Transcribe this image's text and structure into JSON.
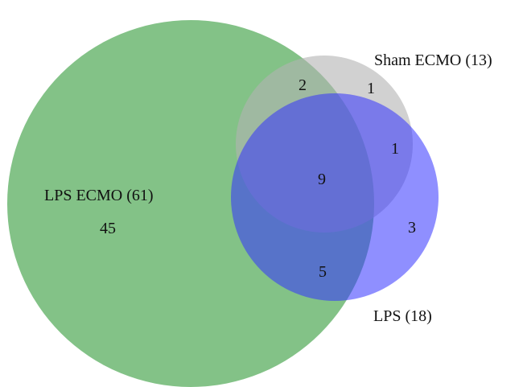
{
  "sets": [
    {
      "id": "lps_ecmo",
      "label": "LPS ECMO (61)",
      "color": "#5aae5f"
    },
    {
      "id": "sham_ecmo",
      "label": "Sham ECMO (13)",
      "color": "#b3b3b3"
    },
    {
      "id": "lps",
      "label": "LPS (18)",
      "color": "#3333ff"
    }
  ],
  "regions": [
    {
      "sets": [
        "lps_ecmo"
      ],
      "count": "45"
    },
    {
      "sets": [
        "lps_ecmo",
        "sham_ecmo"
      ],
      "count": "2"
    },
    {
      "sets": [
        "sham_ecmo"
      ],
      "count": "1"
    },
    {
      "sets": [
        "sham_ecmo",
        "lps"
      ],
      "count": "1"
    },
    {
      "sets": [
        "lps_ecmo",
        "sham_ecmo",
        "lps"
      ],
      "count": "9"
    },
    {
      "sets": [
        "lps"
      ],
      "count": "3"
    },
    {
      "sets": [
        "lps_ecmo",
        "lps"
      ],
      "count": "5"
    }
  ]
}
